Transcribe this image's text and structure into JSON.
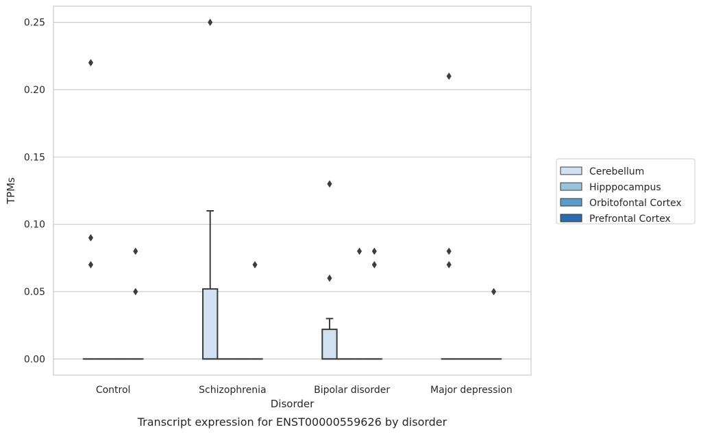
{
  "chart_data": {
    "type": "box",
    "title": "",
    "caption": "Transcript expression for ENST00000559626 by disorder",
    "xlabel": "Disorder",
    "ylabel": "TPMs",
    "ylim": [
      -0.012,
      0.262
    ],
    "yticks": [
      0.0,
      0.05,
      0.1,
      0.15,
      0.2,
      0.25
    ],
    "ytick_labels": [
      "0.00",
      "0.05",
      "0.10",
      "0.15",
      "0.20",
      "0.25"
    ],
    "grid": "horizontal",
    "legend_position": "right",
    "categories": [
      "Control",
      "Schizophrenia",
      "Bipolar disorder",
      "Major depression"
    ],
    "series": [
      {
        "name": "Cerebellum",
        "color": "#d1e1f2",
        "boxes": [
          {
            "q1": 0,
            "median": 0,
            "q3": 0,
            "whisker_low": 0,
            "whisker_high": 0,
            "outliers": [
              0.22,
              0.09,
              0.07
            ]
          },
          {
            "q1": 0,
            "median": 0,
            "q3": 0.052,
            "whisker_low": 0,
            "whisker_high": 0.11,
            "outliers": [
              0.25
            ]
          },
          {
            "q1": 0,
            "median": 0,
            "q3": 0.022,
            "whisker_low": 0,
            "whisker_high": 0.03,
            "outliers": [
              0.13,
              0.06
            ]
          },
          {
            "q1": 0,
            "median": 0,
            "q3": 0,
            "whisker_low": 0,
            "whisker_high": 0,
            "outliers": [
              0.21,
              0.08,
              0.07
            ]
          }
        ]
      },
      {
        "name": "Hipppocampus",
        "color": "#9ac3de",
        "boxes": [
          {
            "q1": 0,
            "median": 0,
            "q3": 0,
            "whisker_low": 0,
            "whisker_high": 0,
            "outliers": []
          },
          {
            "q1": 0,
            "median": 0,
            "q3": 0,
            "whisker_low": 0,
            "whisker_high": 0,
            "outliers": []
          },
          {
            "q1": 0,
            "median": 0,
            "q3": 0,
            "whisker_low": 0,
            "whisker_high": 0,
            "outliers": []
          },
          {
            "q1": 0,
            "median": 0,
            "q3": 0,
            "whisker_low": 0,
            "whisker_high": 0,
            "outliers": []
          }
        ]
      },
      {
        "name": "Orbitofontal Cortex",
        "color": "#5a9bc9",
        "boxes": [
          {
            "q1": 0,
            "median": 0,
            "q3": 0,
            "whisker_low": 0,
            "whisker_high": 0,
            "outliers": []
          },
          {
            "q1": 0,
            "median": 0,
            "q3": 0,
            "whisker_low": 0,
            "whisker_high": 0,
            "outliers": []
          },
          {
            "q1": 0,
            "median": 0,
            "q3": 0,
            "whisker_low": 0,
            "whisker_high": 0,
            "outliers": [
              0.08
            ]
          },
          {
            "q1": 0,
            "median": 0,
            "q3": 0,
            "whisker_low": 0,
            "whisker_high": 0,
            "outliers": []
          }
        ]
      },
      {
        "name": "Prefrontal Cortex",
        "color": "#2a6aad",
        "boxes": [
          {
            "q1": 0,
            "median": 0,
            "q3": 0,
            "whisker_low": 0,
            "whisker_high": 0,
            "outliers": [
              0.08,
              0.05
            ]
          },
          {
            "q1": 0,
            "median": 0,
            "q3": 0,
            "whisker_low": 0,
            "whisker_high": 0,
            "outliers": [
              0.07
            ]
          },
          {
            "q1": 0,
            "median": 0,
            "q3": 0,
            "whisker_low": 0,
            "whisker_high": 0,
            "outliers": [
              0.08,
              0.07
            ]
          },
          {
            "q1": 0,
            "median": 0,
            "q3": 0,
            "whisker_low": 0,
            "whisker_high": 0,
            "outliers": [
              0.05
            ]
          }
        ]
      }
    ]
  }
}
